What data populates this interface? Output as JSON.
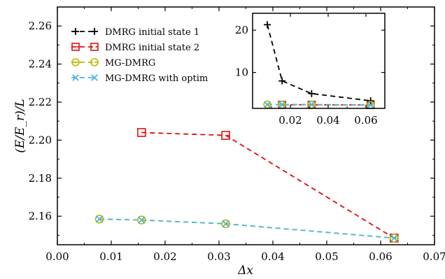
{
  "chart_data": [
    {
      "type": "line",
      "title": "",
      "xlabel": "Δx",
      "ylabel": "(E/E_r)/L",
      "xlim": [
        0.0,
        0.07
      ],
      "ylim": [
        2.145,
        2.27
      ],
      "x_ticks": [
        "0.00",
        "0.01",
        "0.02",
        "0.03",
        "0.04",
        "0.05",
        "0.06",
        "0.07"
      ],
      "y_ticks": [
        "2.16",
        "2.18",
        "2.20",
        "2.22",
        "2.24",
        "2.26"
      ],
      "legend_position": "top-left",
      "grid": false,
      "series": [
        {
          "name": "DMRG initial state 1",
          "color": "#000000",
          "marker": "plus",
          "x": [],
          "y": []
        },
        {
          "name": "DMRG initial state 2",
          "color": "#dd1111",
          "marker": "square",
          "x": [
            0.015625,
            0.03125,
            0.0625
          ],
          "y": [
            2.204,
            2.2025,
            2.1485
          ]
        },
        {
          "name": "MG-DMRG",
          "color": "#b8b800",
          "marker": "circle",
          "x": [
            0.0078125,
            0.015625,
            0.03125,
            0.0625
          ],
          "y": [
            2.1585,
            2.158,
            2.156,
            2.1485
          ]
        },
        {
          "name": "MG-DMRG with optim",
          "color": "#4fb3df",
          "marker": "x",
          "x": [
            0.0078125,
            0.015625,
            0.03125,
            0.0625
          ],
          "y": [
            2.1585,
            2.158,
            2.156,
            2.1485
          ]
        }
      ]
    },
    {
      "type": "line",
      "title": "",
      "xlabel": "",
      "ylabel": "",
      "xlim": [
        0.0,
        0.07
      ],
      "ylim": [
        1.5,
        24
      ],
      "x_ticks": [
        "0.02",
        "0.04",
        "0.06"
      ],
      "y_ticks": [
        "10",
        "20"
      ],
      "grid": false,
      "series": [
        {
          "name": "DMRG initial state 1",
          "color": "#000000",
          "marker": "plus",
          "x": [
            0.0078125,
            0.015625,
            0.03125,
            0.0625
          ],
          "y": [
            21.3,
            8.0,
            5.0,
            3.3
          ]
        },
        {
          "name": "DMRG initial state 2",
          "color": "#dd1111",
          "marker": "square",
          "x": [
            0.015625,
            0.03125,
            0.0625
          ],
          "y": [
            2.35,
            2.35,
            2.3
          ]
        },
        {
          "name": "MG-DMRG",
          "color": "#b8b800",
          "marker": "circle",
          "x": [
            0.0078125,
            0.015625,
            0.03125,
            0.0625
          ],
          "y": [
            2.4,
            2.4,
            2.4,
            2.3
          ]
        },
        {
          "name": "MG-DMRG with optim",
          "color": "#4fb3df",
          "marker": "x",
          "x": [
            0.0078125,
            0.015625,
            0.03125,
            0.0625
          ],
          "y": [
            2.4,
            2.4,
            2.4,
            2.3
          ]
        }
      ]
    }
  ]
}
